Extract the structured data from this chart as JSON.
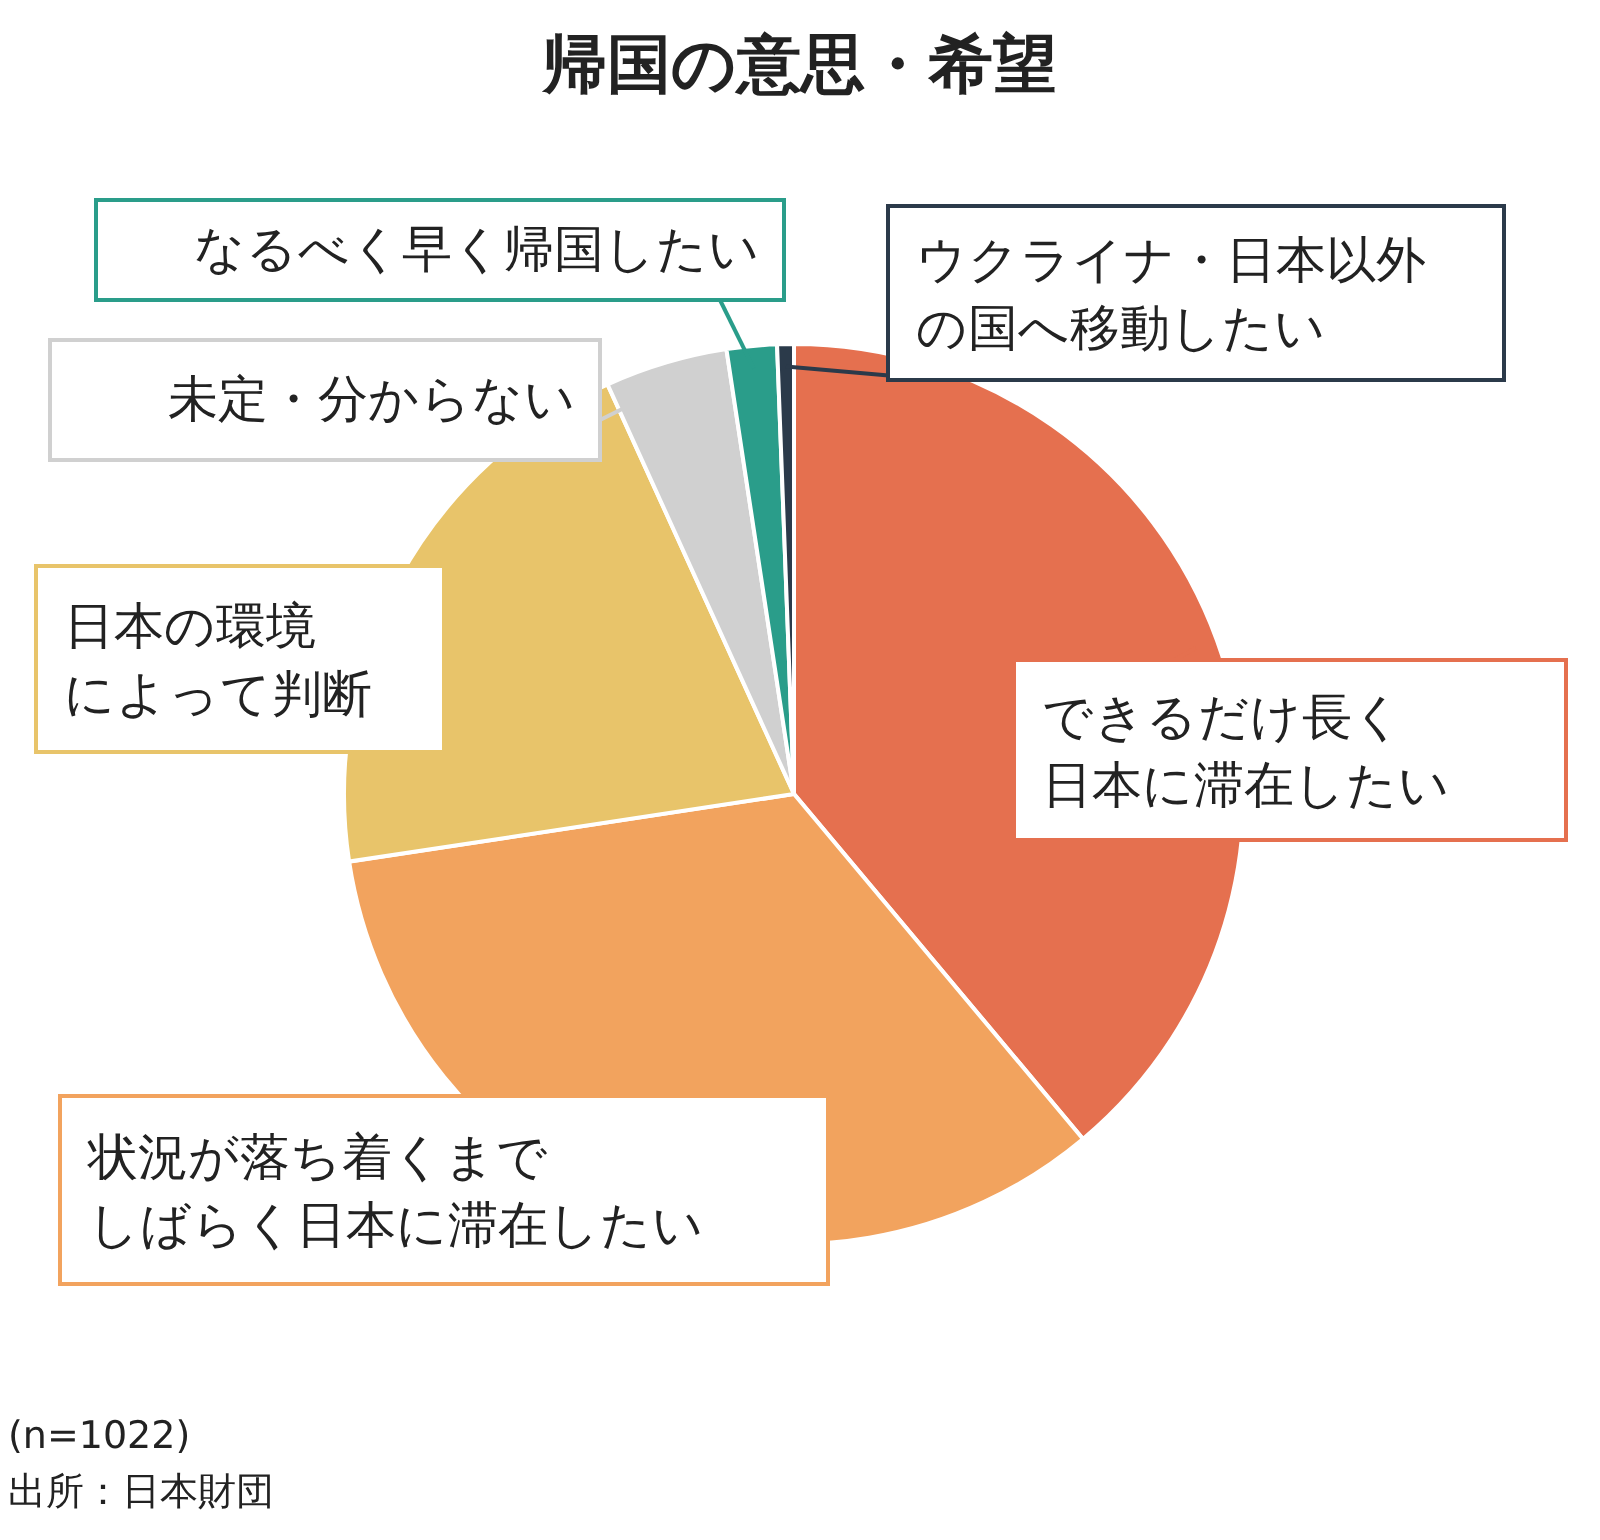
{
  "chart_data": {
    "type": "pie",
    "title": "帰国の意思・希望",
    "categories": [
      "できるだけ長く日本に滞在したい",
      "状況が落ち着くまでしばらく日本に滞在したい",
      "日本の環境によって判断",
      "未定・分からない",
      "なるべく早く帰国したい",
      "ウクライナ・日本以外の国へ移動したい"
    ],
    "values": [
      38.9,
      33.7,
      20.6,
      4.4,
      1.8,
      0.6
    ],
    "colors": [
      "#e5704f",
      "#f2a35e",
      "#e8c46a",
      "#d0d0d0",
      "#2a9d8a",
      "#2b3a4a"
    ],
    "annotations": [
      "(n=1022)",
      "出所：日本財団"
    ]
  }
}
